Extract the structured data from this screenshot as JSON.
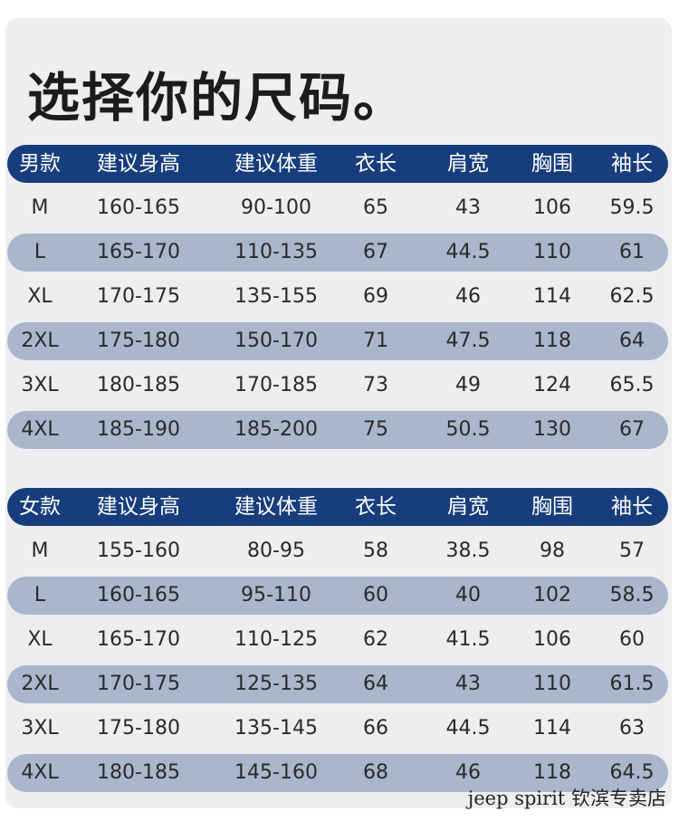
{
  "title": "选择你的尺码。",
  "men": {
    "headers": [
      "男款",
      "建议身高",
      "建议体重",
      "衣长",
      "肩宽",
      "胸围",
      "袖长"
    ],
    "rows": [
      [
        "M",
        "160-165",
        "90-100",
        "65",
        "43",
        "106",
        "59.5"
      ],
      [
        "L",
        "165-170",
        "110-135",
        "67",
        "44.5",
        "110",
        "61"
      ],
      [
        "XL",
        "170-175",
        "135-155",
        "69",
        "46",
        "114",
        "62.5"
      ],
      [
        "2XL",
        "175-180",
        "150-170",
        "71",
        "47.5",
        "118",
        "64"
      ],
      [
        "3XL",
        "180-185",
        "170-185",
        "73",
        "49",
        "124",
        "65.5"
      ],
      [
        "4XL",
        "185-190",
        "185-200",
        "75",
        "50.5",
        "130",
        "67"
      ]
    ]
  },
  "women": {
    "headers": [
      "女款",
      "建议身高",
      "建议体重",
      "衣长",
      "肩宽",
      "胸围",
      "袖长"
    ],
    "rows": [
      [
        "M",
        "155-160",
        "80-95",
        "58",
        "38.5",
        "98",
        "57"
      ],
      [
        "L",
        "160-165",
        "95-110",
        "60",
        "40",
        "102",
        "58.5"
      ],
      [
        "XL",
        "165-170",
        "110-125",
        "62",
        "41.5",
        "106",
        "60"
      ],
      [
        "2XL",
        "170-175",
        "125-135",
        "64",
        "43",
        "110",
        "61.5"
      ],
      [
        "3XL",
        "175-180",
        "135-145",
        "66",
        "44.5",
        "114",
        "63"
      ],
      [
        "4XL",
        "180-185",
        "145-160",
        "68",
        "46",
        "118",
        "64.5"
      ]
    ]
  },
  "watermark": "jeep spirit 钦滨专卖店",
  "colors": {
    "header_bg": "#173d7c",
    "shaded_row_bg": "#a9b6cb",
    "card_bg": "#eeeef0"
  }
}
